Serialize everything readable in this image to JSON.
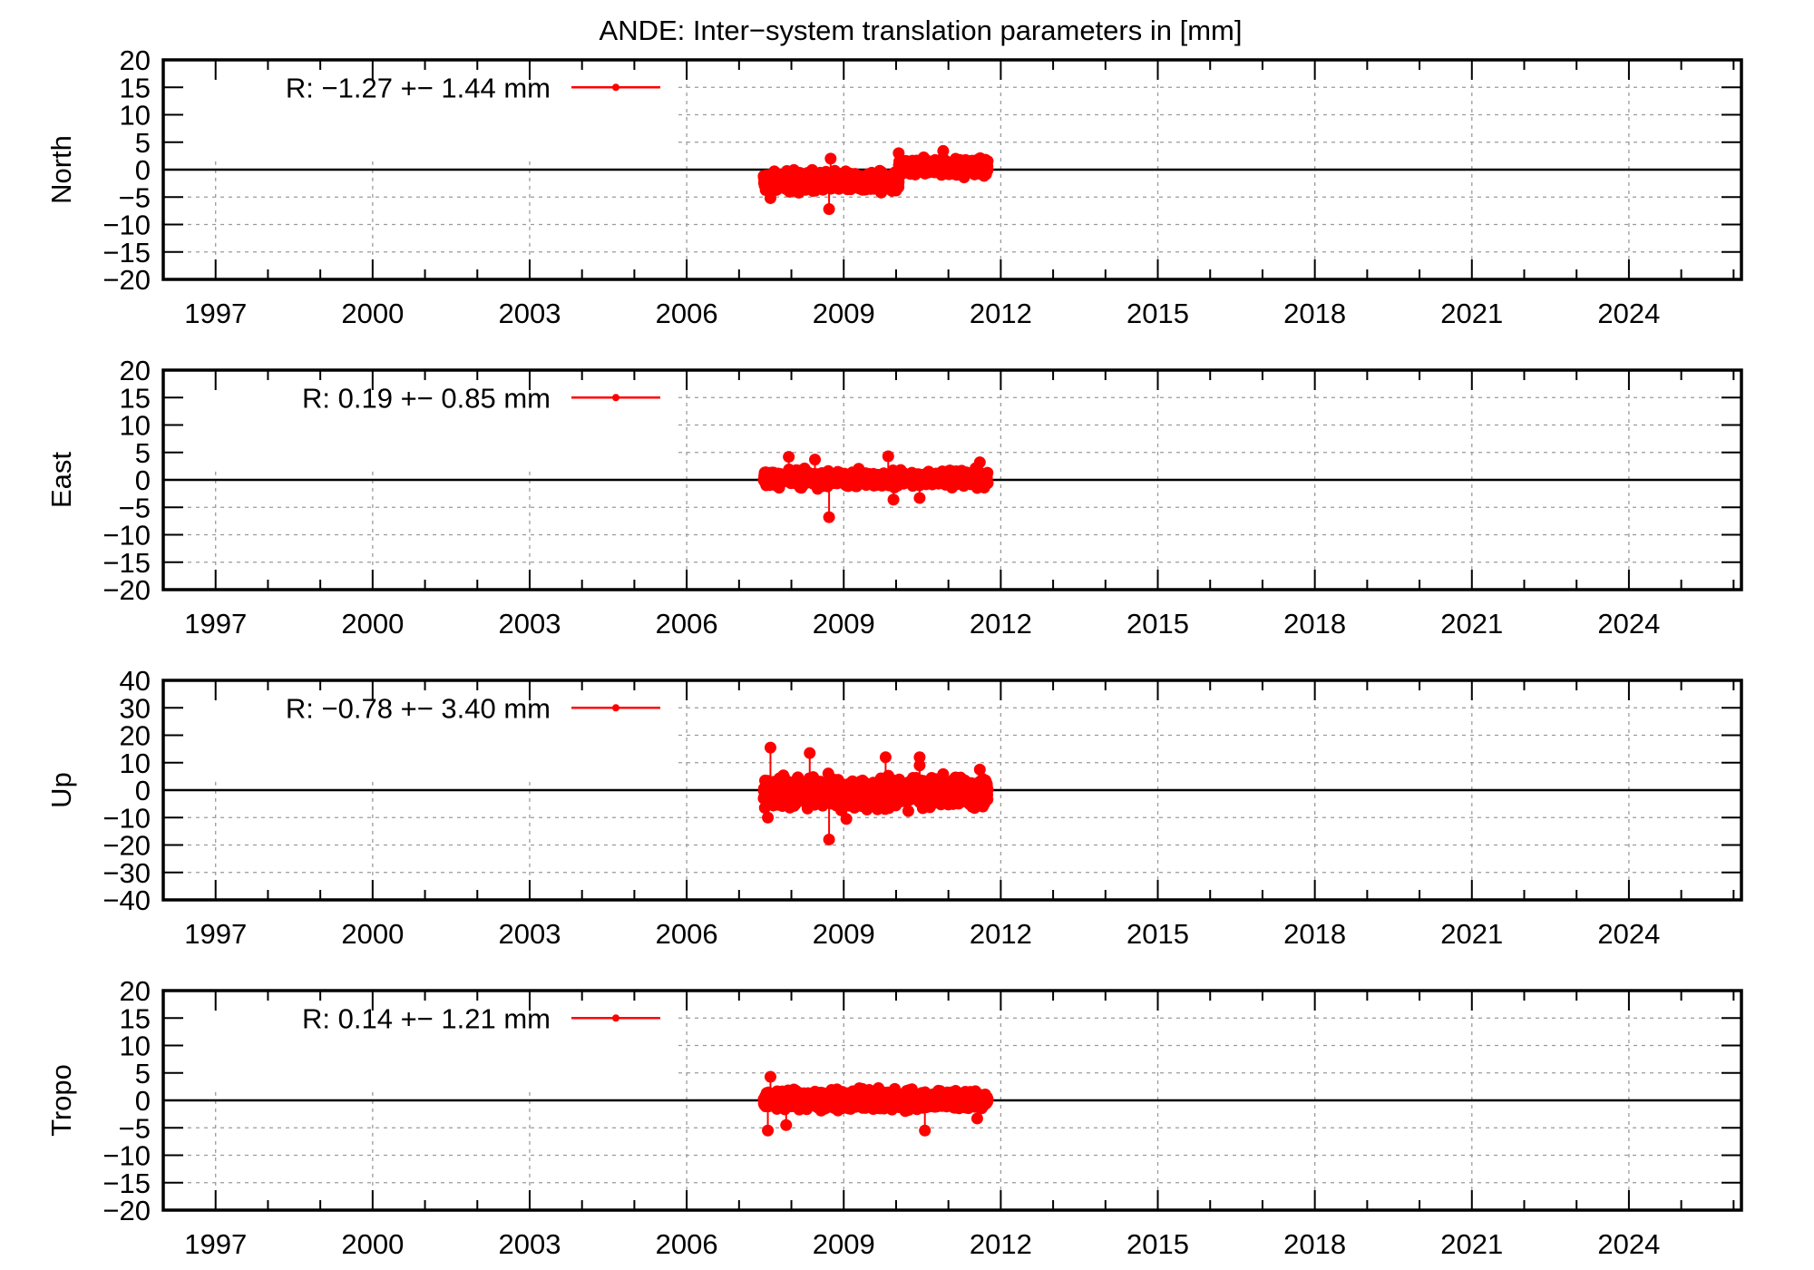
{
  "chart_data": {
    "type": "scatter",
    "title": "ANDE: Inter−system translation parameters in [mm]",
    "xlabel": "",
    "x_ticks": [
      1997,
      2000,
      2003,
      2006,
      2009,
      2012,
      2015,
      2018,
      2021,
      2024
    ],
    "x_minor_tick_step": 1,
    "xlim": [
      1996.0,
      2026.15
    ],
    "grid": true,
    "legend_position": "top-left",
    "series_color": "#ff0000",
    "panels": [
      {
        "id": "north",
        "ylabel": "North",
        "ylim": [
          -20,
          20
        ],
        "y_ticks": [
          20,
          15,
          10,
          5,
          0,
          -5,
          -10,
          -15,
          -20
        ],
        "legend": "R:  −1.27 +− 1.44 mm",
        "mean": -1.27,
        "std": 1.44,
        "x_start": 2007.47,
        "x_end": 2011.75,
        "segments": [
          {
            "from": 2007.47,
            "to": 2010.05,
            "level": -2.2,
            "spread": 1.1
          },
          {
            "from": 2010.05,
            "to": 2011.75,
            "level": 0.6,
            "spread": 0.9
          }
        ],
        "outliers": [
          {
            "x": 2008.72,
            "y": -7.2
          },
          {
            "x": 2008.75,
            "y": 2.0
          },
          {
            "x": 2010.05,
            "y": 3.0
          },
          {
            "x": 2010.9,
            "y": 3.4
          },
          {
            "x": 2007.6,
            "y": -5.2
          }
        ]
      },
      {
        "id": "east",
        "ylabel": "East",
        "ylim": [
          -20,
          20
        ],
        "y_ticks": [
          20,
          15,
          10,
          5,
          0,
          -5,
          -10,
          -15,
          -20
        ],
        "legend": "R:   0.19 +− 0.85 mm",
        "mean": 0.19,
        "std": 0.85,
        "x_start": 2007.47,
        "x_end": 2011.75,
        "segments": [
          {
            "from": 2007.47,
            "to": 2011.75,
            "level": 0.19,
            "spread": 0.85
          }
        ],
        "outliers": [
          {
            "x": 2008.72,
            "y": -6.8
          },
          {
            "x": 2007.95,
            "y": 4.2
          },
          {
            "x": 2009.85,
            "y": 4.3
          },
          {
            "x": 2008.45,
            "y": 3.7
          },
          {
            "x": 2010.45,
            "y": -3.3
          },
          {
            "x": 2009.95,
            "y": -3.6
          },
          {
            "x": 2011.6,
            "y": 3.2
          }
        ]
      },
      {
        "id": "up",
        "ylabel": "Up",
        "ylim": [
          -40,
          40
        ],
        "y_ticks": [
          40,
          30,
          20,
          10,
          0,
          -10,
          -20,
          -30,
          -40
        ],
        "legend": "R:  −0.78 +− 3.40 mm",
        "mean": -0.78,
        "std": 3.4,
        "x_start": 2007.47,
        "x_end": 2011.75,
        "segments": [
          {
            "from": 2007.47,
            "to": 2011.75,
            "level": -0.78,
            "spread": 3.4
          }
        ],
        "outliers": [
          {
            "x": 2008.72,
            "y": -18.0
          },
          {
            "x": 2007.6,
            "y": 15.5
          },
          {
            "x": 2008.35,
            "y": 13.5
          },
          {
            "x": 2010.45,
            "y": 12.0
          },
          {
            "x": 2009.8,
            "y": 12.0
          },
          {
            "x": 2010.45,
            "y": 9.0
          },
          {
            "x": 2011.6,
            "y": 7.5
          },
          {
            "x": 2007.55,
            "y": -10.0
          },
          {
            "x": 2009.05,
            "y": -10.5
          }
        ]
      },
      {
        "id": "tropo",
        "ylabel": "Tropo",
        "ylim": [
          -20,
          20
        ],
        "y_ticks": [
          20,
          15,
          10,
          5,
          0,
          -5,
          -10,
          -15,
          -20
        ],
        "legend": "R:   0.14 +− 1.21 mm",
        "mean": 0.14,
        "std": 1.21,
        "x_start": 2007.47,
        "x_end": 2011.75,
        "segments": [
          {
            "from": 2007.47,
            "to": 2011.75,
            "level": 0.14,
            "spread": 1.1
          }
        ],
        "outliers": [
          {
            "x": 2007.55,
            "y": -5.5
          },
          {
            "x": 2010.55,
            "y": -5.5
          },
          {
            "x": 2007.6,
            "y": 4.3
          },
          {
            "x": 2007.9,
            "y": -4.5
          },
          {
            "x": 2011.55,
            "y": -3.3
          }
        ]
      }
    ]
  }
}
